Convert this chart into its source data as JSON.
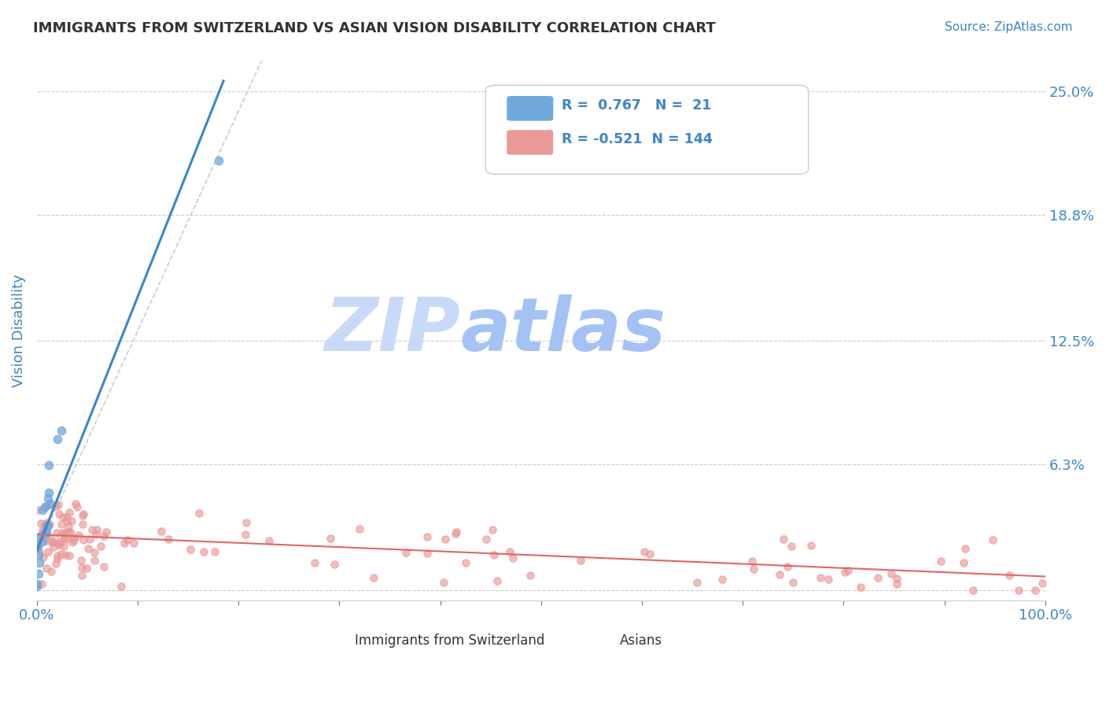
{
  "title": "IMMIGRANTS FROM SWITZERLAND VS ASIAN VISION DISABILITY CORRELATION CHART",
  "source": "Source: ZipAtlas.com",
  "ylabel": "Vision Disability",
  "xlim": [
    0.0,
    1.0
  ],
  "ylim": [
    -0.005,
    0.265
  ],
  "yticks": [
    0.0,
    0.063,
    0.125,
    0.188,
    0.25
  ],
  "ytick_labels": [
    "",
    "6.3%",
    "12.5%",
    "18.8%",
    "25.0%"
  ],
  "xtick_labels": [
    "0.0%",
    "",
    "",
    "",
    "",
    "",
    "",
    "",
    "",
    "",
    "100.0%"
  ],
  "r_swiss": 0.767,
  "n_swiss": 21,
  "r_asian": -0.521,
  "n_asian": 144,
  "blue_color": "#6fa8dc",
  "pink_color": "#ea9999",
  "blue_line_color": "#3d85c8",
  "pink_line_color": "#e06666",
  "watermark_zip_color": "#c9daf8",
  "watermark_atlas_color": "#a4c2f4",
  "title_color": "#333333",
  "source_color": "#3d85c8",
  "grid_color": "#cccccc",
  "axis_label_color": "#3d85c8",
  "legend_r_color": "#3d85c8"
}
